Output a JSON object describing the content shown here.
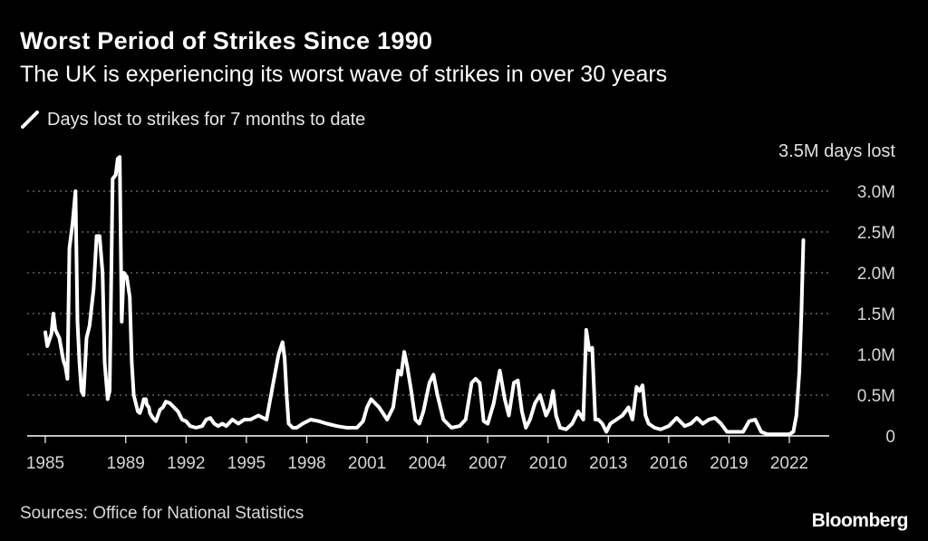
{
  "header": {
    "title": "Worst Period of Strikes Since 1990",
    "subtitle": "The UK is experiencing its worst wave of strikes in over 30 years"
  },
  "legend": {
    "label": "Days lost to strikes for 7 months to date"
  },
  "footer": {
    "source": "Sources: Office for National Statistics",
    "logo": "Bloomberg"
  },
  "colors": {
    "background": "#000000",
    "line": "#ffffff",
    "grid": "#777777",
    "text": "#d6d6d6"
  },
  "chart_data": {
    "type": "line",
    "title": "Worst Period of Strikes Since 1990",
    "subtitle": "The UK is experiencing its worst wave of strikes in over 30 years",
    "series_name": "Days lost to strikes for 7 months to date",
    "ylabel_top": "3.5M days lost",
    "xlim": [
      1985,
      2022.7
    ],
    "ylim": [
      0,
      3.5
    ],
    "grid": true,
    "x_ticks": [
      1985,
      1989,
      1992,
      1995,
      1998,
      2001,
      2004,
      2007,
      2010,
      2013,
      2016,
      2019,
      2022
    ],
    "x_tick_labels": [
      "1985",
      "1989",
      "1992",
      "1995",
      "1998",
      "2001",
      "2004",
      "2007",
      "2010",
      "2013",
      "2016",
      "2019",
      "2022"
    ],
    "y_ticks": [
      0,
      0.5,
      1.0,
      1.5,
      2.0,
      2.5,
      3.0
    ],
    "y_tick_labels": [
      "0",
      "0.5M",
      "1.0M",
      "1.5M",
      "2.0M",
      "2.5M",
      "3.0M"
    ],
    "x": [
      1985.0,
      1985.1,
      1985.3,
      1985.4,
      1985.5,
      1985.7,
      1985.9,
      1986.0,
      1986.1,
      1986.2,
      1986.35,
      1986.5,
      1986.6,
      1986.7,
      1986.8,
      1986.9,
      1987.05,
      1987.2,
      1987.4,
      1987.55,
      1987.7,
      1987.85,
      1987.95,
      1988.1,
      1988.2,
      1988.35,
      1988.5,
      1988.6,
      1988.7,
      1988.8,
      1988.9,
      1989.05,
      1989.2,
      1989.3,
      1989.4,
      1989.6,
      1989.7,
      1989.8,
      1989.9,
      1990.0,
      1990.05,
      1990.15,
      1990.2,
      1990.35,
      1990.5,
      1990.6,
      1990.7,
      1990.85,
      1991.0,
      1991.2,
      1991.4,
      1991.6,
      1991.8,
      1992.0,
      1992.2,
      1992.5,
      1992.8,
      1993.0,
      1993.2,
      1993.4,
      1993.6,
      1993.8,
      1994.0,
      1994.3,
      1994.6,
      1994.9,
      1995.2,
      1995.6,
      1996.0,
      1996.3,
      1996.6,
      1996.8,
      1996.9,
      1997.0,
      1997.1,
      1997.3,
      1997.5,
      1997.8,
      1998.2,
      1998.6,
      1999.0,
      1999.5,
      2000.0,
      2000.5,
      2000.8,
      2001.0,
      2001.2,
      2001.6,
      2002.0,
      2002.3,
      2002.55,
      2002.7,
      2002.85,
      2003.0,
      2003.2,
      2003.4,
      2003.6,
      2003.8,
      2004.1,
      2004.3,
      2004.5,
      2004.8,
      2005.2,
      2005.6,
      2005.9,
      2006.2,
      2006.4,
      2006.6,
      2006.8,
      2007.0,
      2007.3,
      2007.6,
      2007.85,
      2008.05,
      2008.3,
      2008.5,
      2008.7,
      2008.9,
      2009.1,
      2009.35,
      2009.6,
      2009.9,
      2010.1,
      2010.25,
      2010.4,
      2010.6,
      2010.9,
      2011.2,
      2011.5,
      2011.75,
      2011.9,
      2012.05,
      2012.2,
      2012.35,
      2012.5,
      2012.7,
      2012.9,
      2013.1,
      2013.4,
      2013.7,
      2014.0,
      2014.2,
      2014.4,
      2014.55,
      2014.7,
      2014.85,
      2015.0,
      2015.3,
      2015.6,
      2016.0,
      2016.4,
      2016.8,
      2017.1,
      2017.4,
      2017.7,
      2018.0,
      2018.3,
      2018.6,
      2018.9,
      2019.3,
      2019.7,
      2020.0,
      2020.3,
      2020.6,
      2020.9,
      2021.3,
      2021.7,
      2022.0,
      2022.2,
      2022.35,
      2022.5,
      2022.6,
      2022.7
    ],
    "values": [
      1.27,
      1.1,
      1.25,
      1.5,
      1.3,
      1.2,
      0.92,
      0.85,
      0.7,
      2.3,
      2.6,
      3.0,
      1.4,
      0.9,
      0.55,
      0.5,
      1.2,
      1.35,
      1.8,
      2.45,
      2.45,
      2.0,
      0.9,
      0.45,
      0.55,
      3.15,
      3.2,
      3.4,
      3.42,
      1.4,
      2.0,
      1.95,
      1.7,
      0.9,
      0.5,
      0.3,
      0.28,
      0.35,
      0.45,
      0.45,
      0.38,
      0.35,
      0.28,
      0.22,
      0.18,
      0.25,
      0.32,
      0.35,
      0.42,
      0.4,
      0.35,
      0.3,
      0.2,
      0.18,
      0.12,
      0.1,
      0.12,
      0.2,
      0.22,
      0.15,
      0.12,
      0.15,
      0.12,
      0.2,
      0.15,
      0.2,
      0.2,
      0.25,
      0.2,
      0.6,
      1.0,
      1.15,
      0.95,
      0.5,
      0.15,
      0.1,
      0.1,
      0.15,
      0.2,
      0.18,
      0.15,
      0.12,
      0.1,
      0.1,
      0.18,
      0.35,
      0.45,
      0.35,
      0.2,
      0.35,
      0.8,
      0.75,
      1.03,
      0.85,
      0.55,
      0.2,
      0.15,
      0.3,
      0.65,
      0.75,
      0.5,
      0.2,
      0.1,
      0.12,
      0.2,
      0.65,
      0.7,
      0.65,
      0.18,
      0.15,
      0.4,
      0.8,
      0.45,
      0.25,
      0.65,
      0.68,
      0.3,
      0.1,
      0.2,
      0.4,
      0.5,
      0.25,
      0.35,
      0.55,
      0.25,
      0.1,
      0.08,
      0.15,
      0.3,
      0.2,
      1.3,
      1.05,
      1.08,
      0.2,
      0.2,
      0.15,
      0.05,
      0.15,
      0.2,
      0.25,
      0.35,
      0.2,
      0.6,
      0.55,
      0.62,
      0.25,
      0.15,
      0.1,
      0.08,
      0.12,
      0.22,
      0.12,
      0.15,
      0.22,
      0.15,
      0.2,
      0.22,
      0.15,
      0.05,
      0.05,
      0.05,
      0.18,
      0.2,
      0.05,
      0.02,
      0.02,
      0.02,
      0.02,
      0.05,
      0.25,
      0.8,
      1.5,
      2.4
    ]
  }
}
